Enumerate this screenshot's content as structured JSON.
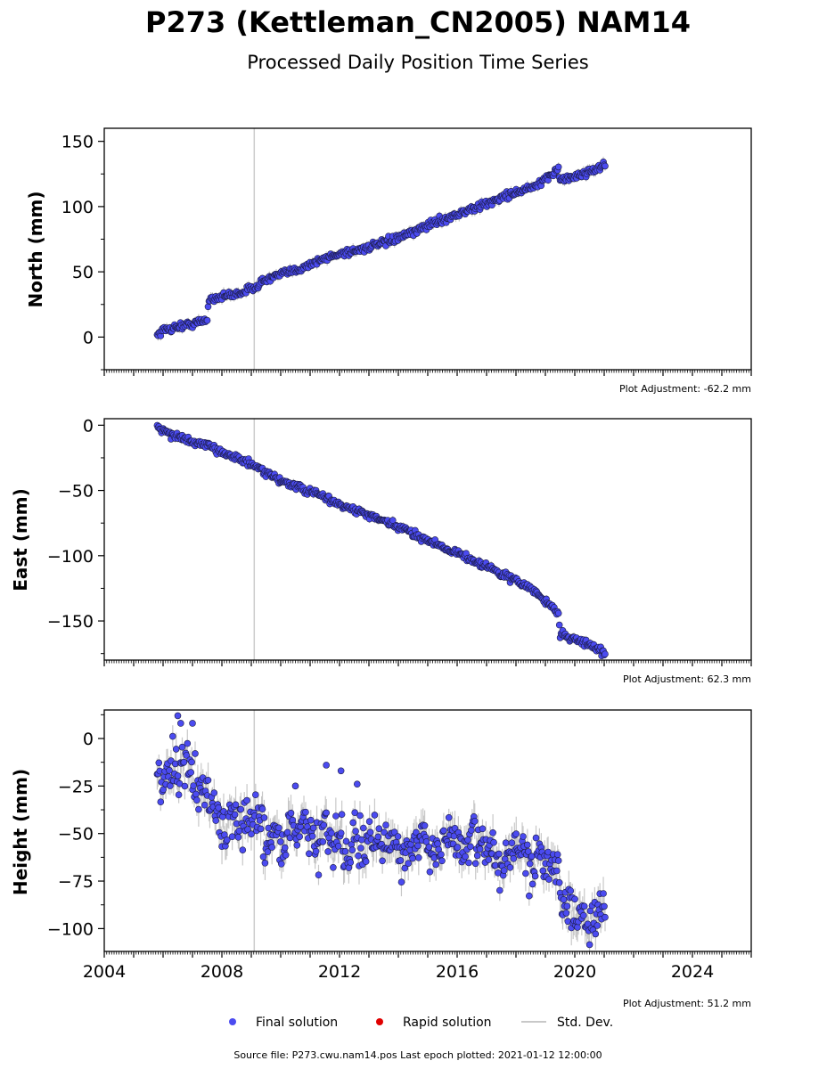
{
  "title": "P273 (Kettleman_CN2005) NAM14",
  "subtitle": "Processed Daily Position Time Series",
  "footer": "Source file: P273.cwu.nam14.pos  Last epoch plotted: 2021-01-12 12:00:00",
  "legend": {
    "final": "Final solution",
    "rapid": "Rapid solution",
    "std": "Std. Dev."
  },
  "colors": {
    "final": "#4b4bf0",
    "rapid": "#e00000",
    "std": "#c8c8c8",
    "marker_edge": "#1a1a40",
    "event_line": "#cccccc"
  },
  "chart_data": [
    {
      "type": "scatter",
      "ylabel": "North (mm)",
      "adjustment": "Plot Adjustment: -62.2 mm",
      "xlim": [
        2004,
        2026
      ],
      "ylim": [
        -25,
        160
      ],
      "yticks": [
        0,
        50,
        100,
        150
      ],
      "xticks": [
        2004,
        2008,
        2012,
        2016,
        2020,
        2024
      ],
      "show_xticklabels": false,
      "event_lines": [
        2009.1
      ],
      "series": [
        {
          "kind": "final",
          "x": [
            2005.8,
            2006.0,
            2006.5,
            2007.0,
            2007.5,
            2007.55,
            2008.0,
            2008.5,
            2009.0,
            2009.5,
            2010.0,
            2010.5,
            2011.0,
            2011.5,
            2012.0,
            2012.5,
            2013.0,
            2013.5,
            2014.0,
            2014.5,
            2015.0,
            2015.5,
            2016.0,
            2016.5,
            2017.0,
            2017.5,
            2018.0,
            2018.5,
            2019.0,
            2019.45,
            2019.5,
            2020.0,
            2020.5,
            2021.03
          ],
          "y": [
            2,
            5,
            8,
            10,
            13,
            29,
            31,
            33,
            37,
            44,
            48,
            51,
            56,
            60,
            64,
            66,
            69,
            72,
            76,
            80,
            86,
            90,
            94,
            98,
            102,
            107,
            111,
            114,
            120,
            130,
            120,
            123,
            127,
            132
          ],
          "sigma": 3
        }
      ]
    },
    {
      "type": "scatter",
      "ylabel": "East (mm)",
      "adjustment": "Plot Adjustment: 62.3 mm",
      "xlim": [
        2004,
        2026
      ],
      "ylim": [
        -180,
        5
      ],
      "yticks": [
        0,
        -50,
        -100,
        -150
      ],
      "xticks": [
        2004,
        2008,
        2012,
        2016,
        2020,
        2024
      ],
      "show_xticklabels": false,
      "event_lines": [
        2009.1
      ],
      "series": [
        {
          "kind": "final",
          "x": [
            2005.8,
            2006.0,
            2006.5,
            2007.0,
            2007.5,
            2008.0,
            2008.5,
            2009.0,
            2009.5,
            2010.0,
            2010.5,
            2011.0,
            2011.5,
            2012.0,
            2012.5,
            2013.0,
            2013.5,
            2014.0,
            2014.5,
            2015.0,
            2015.5,
            2016.0,
            2016.5,
            2017.0,
            2017.5,
            2018.0,
            2018.5,
            2019.0,
            2019.45,
            2019.5,
            2020.0,
            2020.5,
            2021.03
          ],
          "y": [
            0,
            -4,
            -9,
            -13,
            -16,
            -20,
            -25,
            -30,
            -37,
            -42,
            -47,
            -51,
            -55,
            -61,
            -65,
            -69,
            -74,
            -78,
            -83,
            -88,
            -93,
            -98,
            -103,
            -108,
            -114,
            -119,
            -125,
            -135,
            -144,
            -160,
            -164,
            -168,
            -175
          ],
          "sigma": 2.5
        }
      ]
    },
    {
      "type": "scatter",
      "ylabel": "Height (mm)",
      "adjustment": "Plot Adjustment: 51.2 mm",
      "xlim": [
        2004,
        2026
      ],
      "ylim": [
        -112,
        15
      ],
      "yticks": [
        0,
        -25,
        -50,
        -75,
        -100
      ],
      "xticks": [
        2004,
        2008,
        2012,
        2016,
        2020,
        2024
      ],
      "xticklabels": [
        "2004",
        "2008",
        "2012",
        "2016",
        "2020",
        "2024"
      ],
      "show_xticklabels": true,
      "event_lines": [
        2009.1
      ],
      "series": [
        {
          "kind": "final",
          "x": [
            2005.8,
            2006.0,
            2006.3,
            2006.5,
            2006.8,
            2007.0,
            2007.3,
            2007.5,
            2007.8,
            2008.0,
            2008.3,
            2008.5,
            2008.8,
            2009.0,
            2009.3,
            2009.5,
            2009.8,
            2010.0,
            2010.3,
            2010.5,
            2010.8,
            2011.0,
            2011.3,
            2011.5,
            2011.8,
            2012.0,
            2012.3,
            2012.5,
            2012.8,
            2013.0,
            2013.3,
            2013.5,
            2013.8,
            2014.0,
            2014.3,
            2014.5,
            2014.8,
            2015.0,
            2015.3,
            2015.5,
            2015.8,
            2016.0,
            2016.3,
            2016.5,
            2016.8,
            2017.0,
            2017.3,
            2017.5,
            2017.8,
            2018.0,
            2018.3,
            2018.5,
            2018.8,
            2019.0,
            2019.3,
            2019.45,
            2019.6,
            2019.8,
            2020.0,
            2020.3,
            2020.5,
            2020.8,
            2021.03
          ],
          "y": [
            -12,
            -28,
            -15,
            -20,
            -10,
            -22,
            -25,
            -30,
            -38,
            -48,
            -42,
            -50,
            -40,
            -45,
            -38,
            -55,
            -48,
            -58,
            -45,
            -52,
            -40,
            -48,
            -60,
            -45,
            -55,
            -50,
            -62,
            -48,
            -58,
            -52,
            -55,
            -60,
            -50,
            -58,
            -62,
            -55,
            -48,
            -58,
            -62,
            -56,
            -52,
            -55,
            -58,
            -48,
            -62,
            -55,
            -60,
            -68,
            -58,
            -62,
            -60,
            -68,
            -58,
            -65,
            -60,
            -70,
            -90,
            -88,
            -98,
            -93,
            -97,
            -90,
            -95
          ],
          "sigma": 7
        }
      ],
      "outliers": {
        "x": [
          2006.5,
          2006.6,
          2007.0,
          2011.55,
          2012.05,
          2010.5,
          2012.6
        ],
        "y": [
          12,
          8,
          8,
          -14,
          -17,
          -25,
          -24
        ]
      }
    }
  ]
}
